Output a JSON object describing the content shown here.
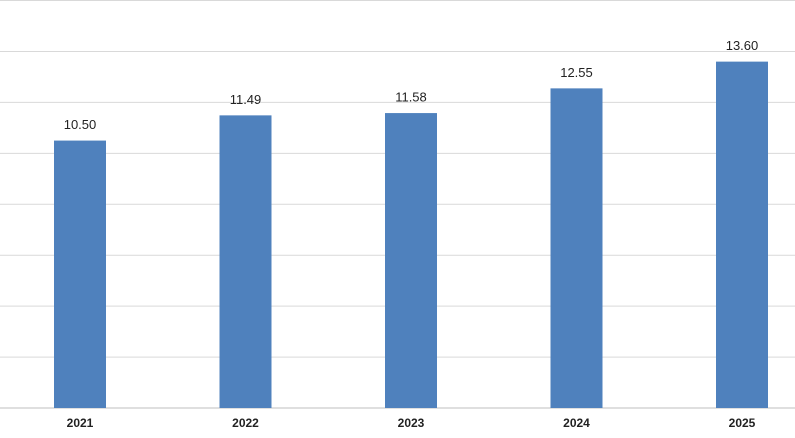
{
  "chart_data": {
    "type": "bar",
    "categories": [
      "2021",
      "2022",
      "2023",
      "2024",
      "2025"
    ],
    "values": [
      10.5,
      11.49,
      11.58,
      12.55,
      13.6
    ],
    "value_labels": [
      "10.50",
      "11.49",
      "11.58",
      "12.55",
      "13.60"
    ],
    "color": "#4f81bd",
    "ylim": [
      0,
      16
    ],
    "yticks": [
      0,
      2,
      4,
      6,
      8,
      10,
      12,
      14,
      16
    ],
    "grid": true
  }
}
